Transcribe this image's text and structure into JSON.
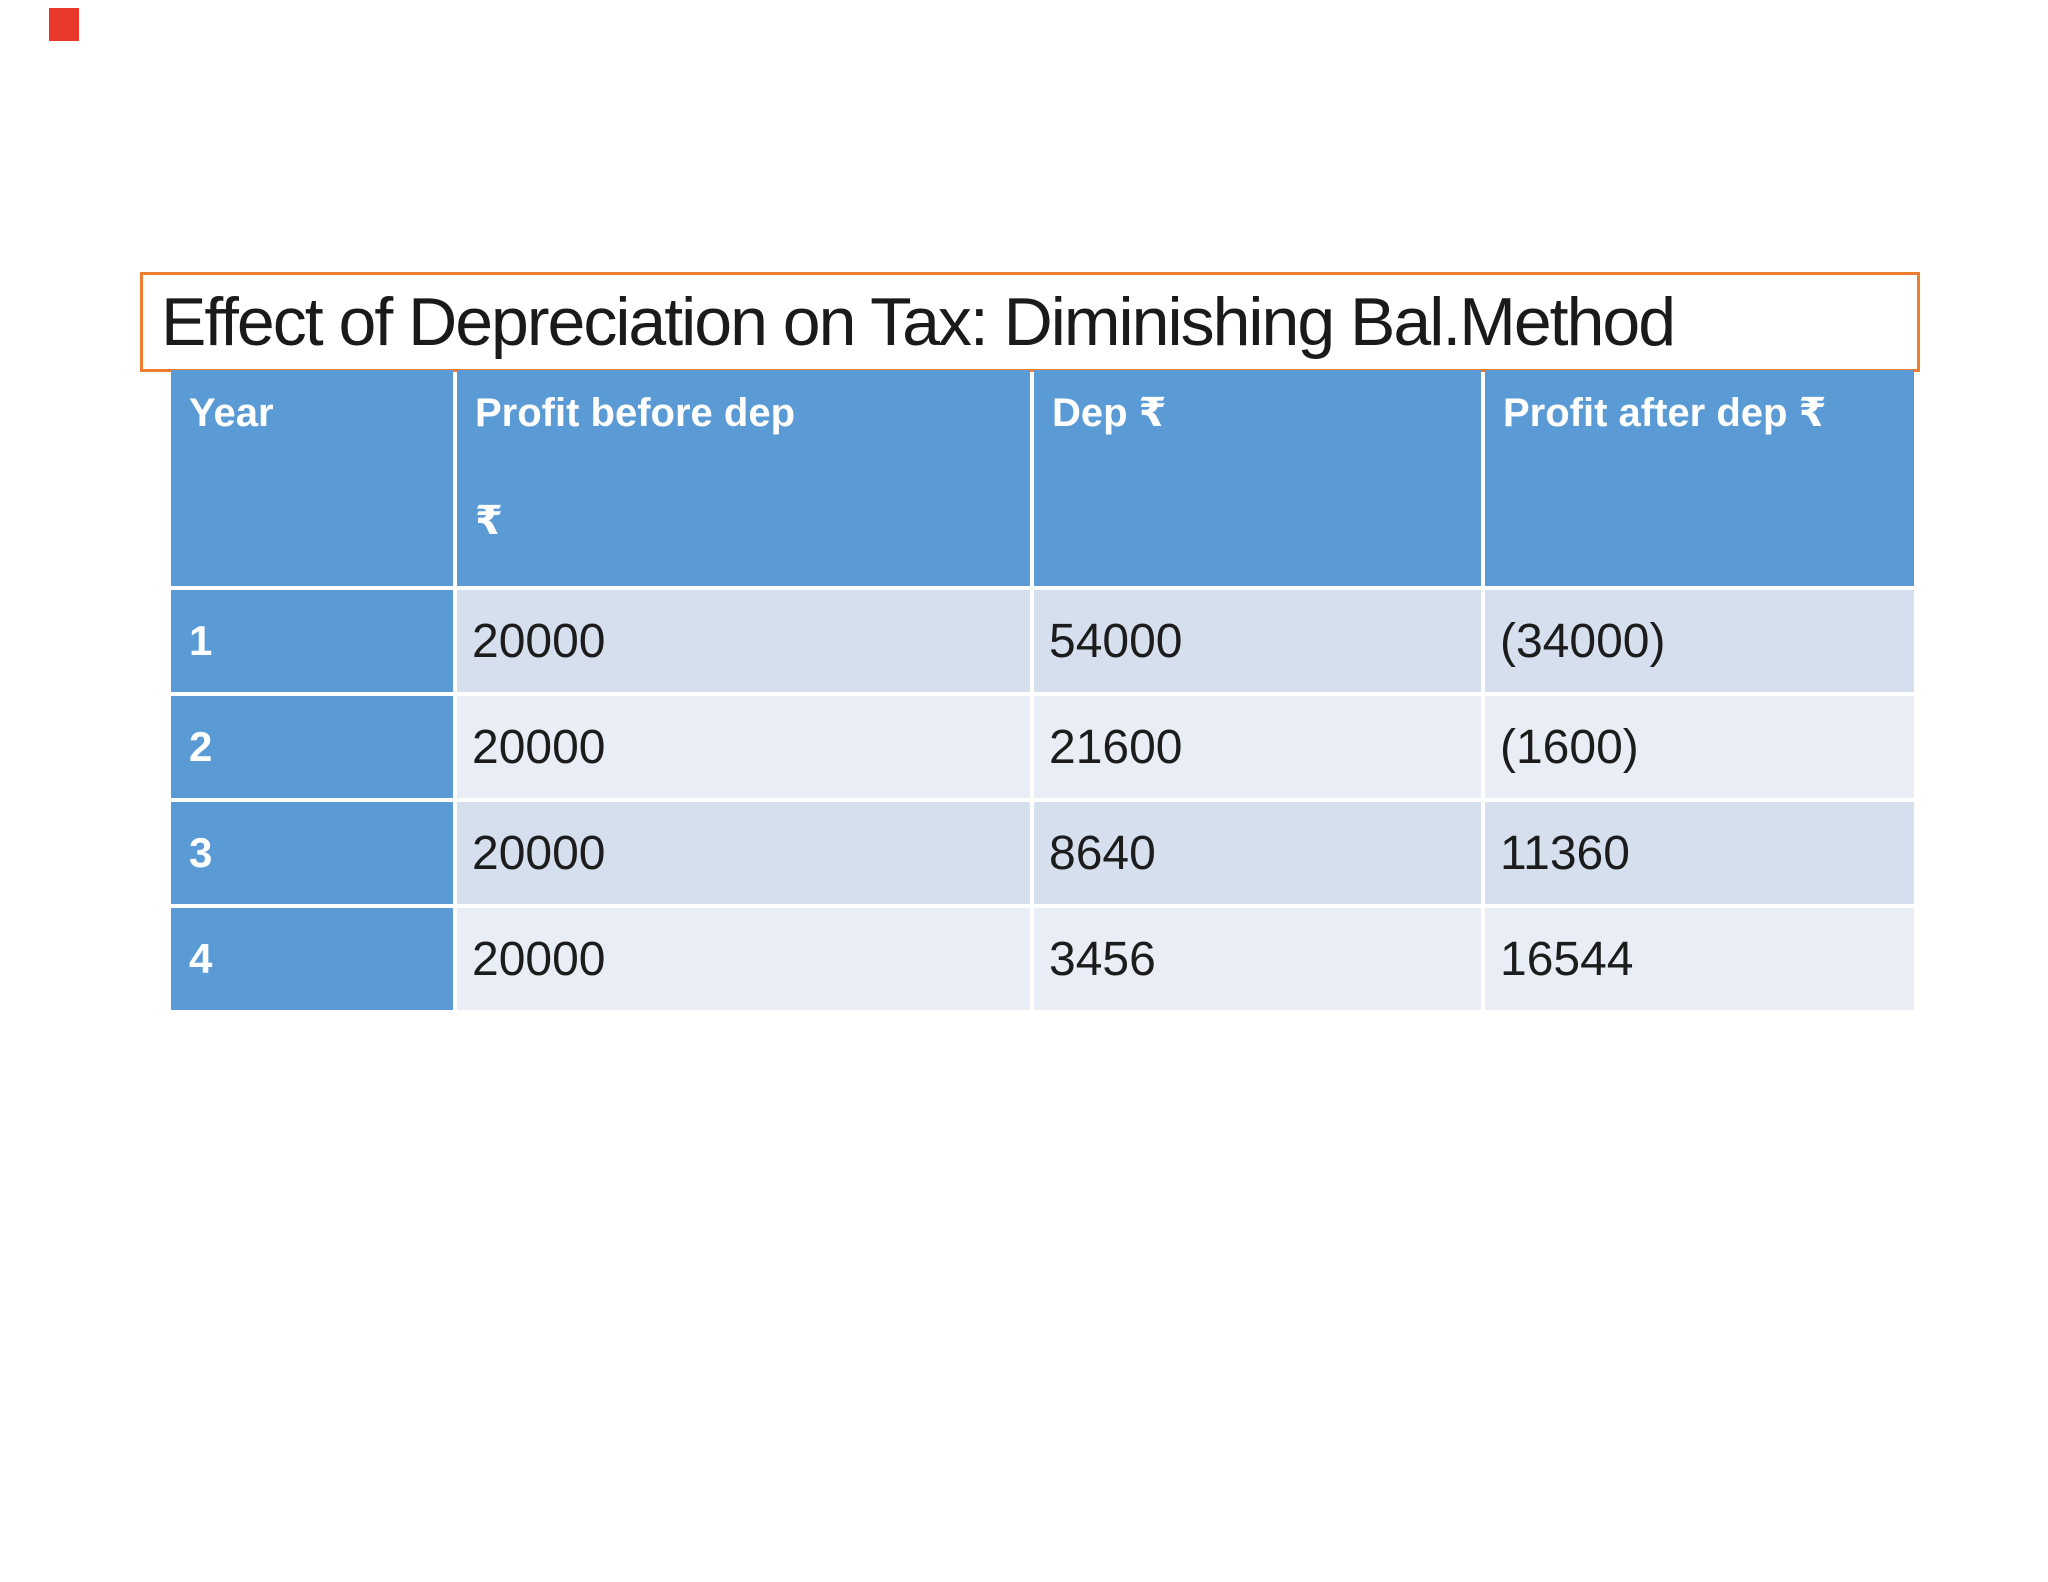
{
  "slide": {
    "title": "Effect of Depreciation on Tax: Diminishing Bal.Method"
  },
  "colors": {
    "title_border_orange": "#ED7D31",
    "header_blue": "#5B9BD5",
    "band_dark": "#D5DFEE",
    "band_light": "#E9EDF5",
    "red_marker": "#E8392B",
    "text_dark": "#1C1C1C"
  },
  "table": {
    "columns": [
      {
        "label": "Year",
        "label_line2": ""
      },
      {
        "label": "Profit before dep",
        "label_line2": "₹"
      },
      {
        "label": "Dep ₹",
        "label_line2": ""
      },
      {
        "label": "Profit after dep ₹",
        "label_line2": ""
      }
    ],
    "rows": [
      {
        "year": "1",
        "profit_before": "20000",
        "dep": "54000",
        "profit_after": "(34000)"
      },
      {
        "year": "2",
        "profit_before": "20000",
        "dep": "21600",
        "profit_after": "(1600)"
      },
      {
        "year": "3",
        "profit_before": "20000",
        "dep": "8640",
        "profit_after": "11360"
      },
      {
        "year": "4",
        "profit_before": "20000",
        "dep": "3456",
        "profit_after": "16544"
      }
    ]
  }
}
